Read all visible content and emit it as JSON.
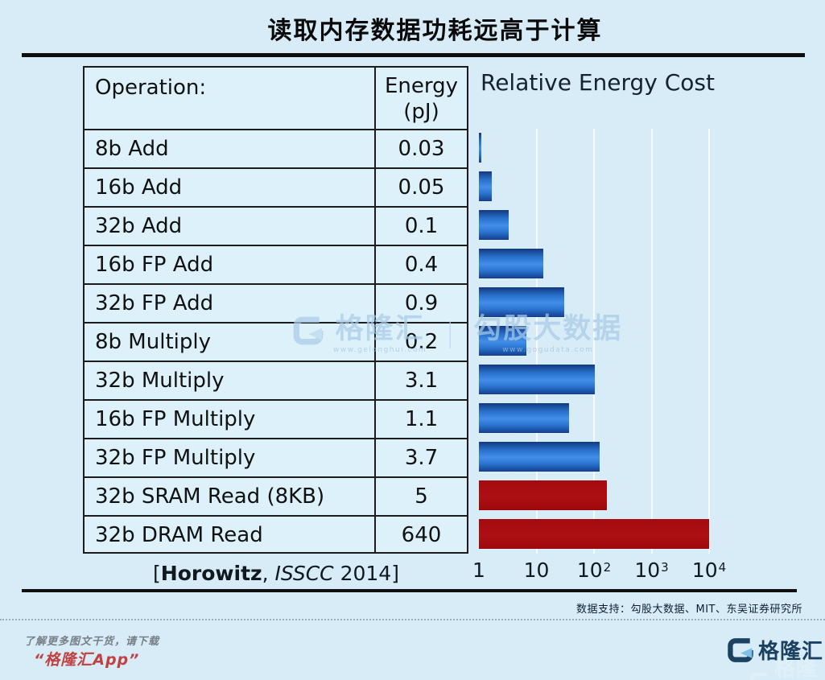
{
  "title": "读取内存数据功耗远高于计算",
  "table": {
    "header": {
      "operation": "Operation:",
      "energy_line1": "Energy",
      "energy_line2": "(pJ)"
    },
    "rows": [
      {
        "operation": "8b Add",
        "energy": "0.03"
      },
      {
        "operation": "16b Add",
        "energy": "0.05"
      },
      {
        "operation": "32b Add",
        "energy": "0.1"
      },
      {
        "operation": "16b FP Add",
        "energy": "0.4"
      },
      {
        "operation": "32b FP Add",
        "energy": "0.9"
      },
      {
        "operation": "8b Multiply",
        "energy": "0.2"
      },
      {
        "operation": "32b Multiply",
        "energy": "3.1"
      },
      {
        "operation": "16b FP Multiply",
        "energy": "1.1"
      },
      {
        "operation": "32b FP Multiply",
        "energy": "3.7"
      },
      {
        "operation": "32b SRAM Read (8KB)",
        "energy": "5"
      },
      {
        "operation": "32b DRAM Read",
        "energy": "640"
      }
    ]
  },
  "chart_data": {
    "type": "bar",
    "orientation": "horizontal",
    "title": "Relative Energy Cost",
    "x_scale": "log10",
    "x_range": [
      1,
      10000
    ],
    "x_axis_ticks": [
      {
        "base": "1",
        "sup": ""
      },
      {
        "base": "10",
        "sup": ""
      },
      {
        "base": "10",
        "sup": "2"
      },
      {
        "base": "10",
        "sup": "3"
      },
      {
        "base": "10",
        "sup": "4"
      }
    ],
    "categories": [
      "8b Add",
      "16b Add",
      "32b Add",
      "16b FP Add",
      "32b FP Add",
      "8b Multiply",
      "32b Multiply",
      "16b FP Multiply",
      "32b FP Multiply",
      "32b SRAM Read (8KB)",
      "32b DRAM Read"
    ],
    "energy_pj": [
      0.03,
      0.05,
      0.1,
      0.4,
      0.9,
      0.2,
      3.1,
      1.1,
      3.7,
      5,
      640
    ],
    "relative_baseline_pj": 0.03,
    "relative_values": [
      1,
      1.7,
      3.3,
      13.3,
      30,
      6.7,
      103.3,
      36.7,
      123.3,
      166.7,
      21333.3
    ],
    "bar_color_keys": [
      "blue",
      "blue",
      "blue",
      "blue",
      "blue",
      "blue",
      "blue",
      "blue",
      "blue",
      "red",
      "red"
    ],
    "colors": {
      "blue": "#2a77d4",
      "red": "#a80d10"
    },
    "grid": true,
    "legend": false
  },
  "source_note": {
    "open": "[",
    "author": "Horowitz",
    "comma": ", ",
    "conference": "ISSCC",
    "close": " 2014]"
  },
  "credit": "数据支持：勾股大数据、MIT、东吴证券研究所",
  "watermark": {
    "brand": "格隆汇",
    "brand_url": "www.gelonghui.com",
    "divider": "｜",
    "partner": "勾股大数据",
    "partner_url": "www.gogudata.com"
  },
  "footer": {
    "promo_line1": "了解更多图文干货，请下载",
    "promo_line2": "“格隆汇App”",
    "logo_text": "格隆汇"
  }
}
